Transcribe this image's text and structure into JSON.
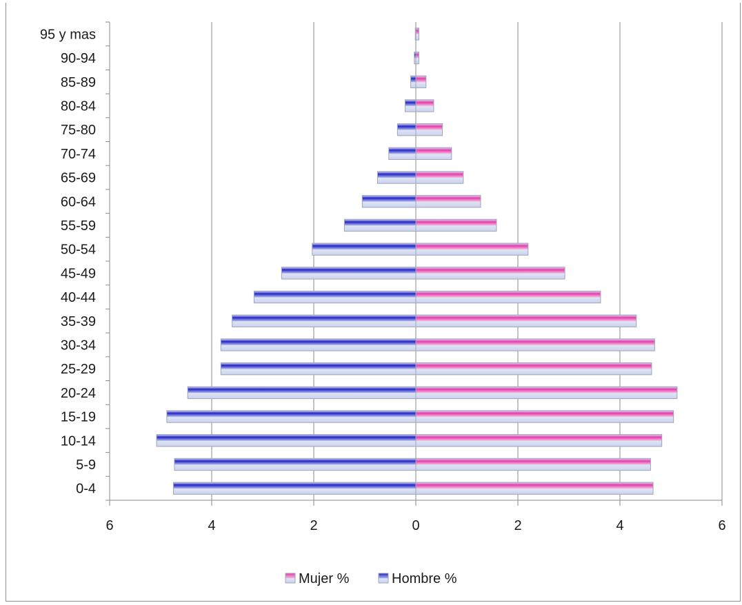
{
  "chart_data": {
    "type": "bar",
    "orientation": "horizontal",
    "title": "",
    "categories": [
      "0-4",
      "5-9",
      "10-14",
      "15-19",
      "20-24",
      "25-29",
      "30-34",
      "35-39",
      "40-44",
      "45-49",
      "50-54",
      "55-59",
      "60-64",
      "65-69",
      "70-74",
      "75-80",
      "80-84",
      "85-89",
      "90-94",
      "95 y mas"
    ],
    "series": [
      {
        "name": "Mujer %",
        "color": "#e63cad",
        "values": [
          4.65,
          4.6,
          4.82,
          5.05,
          5.12,
          4.62,
          4.68,
          4.32,
          3.62,
          2.92,
          2.2,
          1.58,
          1.27,
          0.93,
          0.7,
          0.52,
          0.35,
          0.2,
          0.06,
          0.06
        ]
      },
      {
        "name": "Hombre %",
        "color": "#2424c8",
        "values": [
          4.75,
          4.73,
          5.08,
          4.88,
          4.47,
          3.82,
          3.82,
          3.6,
          3.17,
          2.63,
          2.03,
          1.4,
          1.05,
          0.75,
          0.53,
          0.36,
          0.21,
          0.1,
          0.03,
          0.01
        ]
      }
    ],
    "xlim": [
      -6,
      6
    ],
    "xticks": [
      "6",
      "4",
      "2",
      "0",
      "2",
      "4",
      "6"
    ],
    "grid": true,
    "legend": "bottom"
  }
}
